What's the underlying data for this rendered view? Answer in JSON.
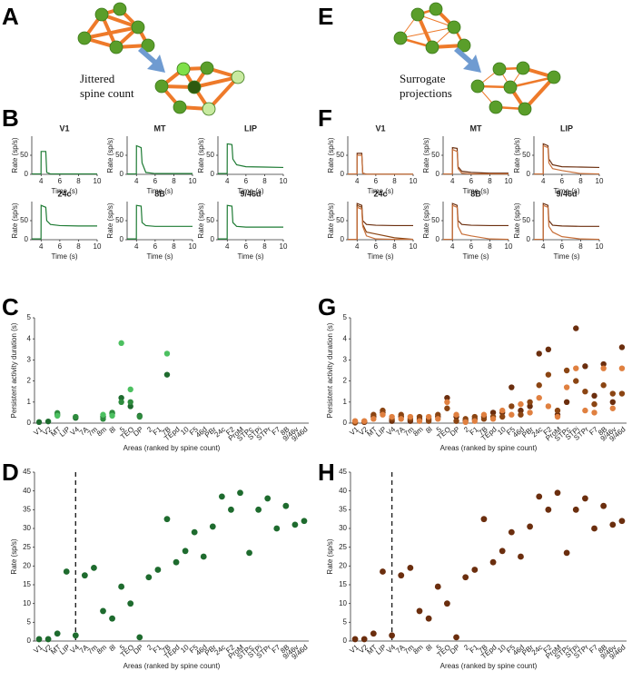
{
  "panel_labels": [
    "A",
    "B",
    "C",
    "D",
    "E",
    "F",
    "G",
    "H"
  ],
  "diagram_captions": [
    [
      "Jittered",
      "spine count"
    ],
    [
      "Surrogate",
      "projections"
    ]
  ],
  "chart_data": [
    {
      "type": "line",
      "title": "V1",
      "xlabel": "Time (s)",
      "ylabel": "Rate (sp/s)",
      "x": [
        3,
        3.99,
        4,
        4.5,
        4.6,
        5,
        6,
        8,
        10
      ],
      "xlim": [
        3,
        10
      ],
      "xticks": [
        4,
        6,
        8,
        10
      ],
      "ylim": [
        0,
        100
      ],
      "yticks": [
        0,
        50
      ],
      "series": [
        {
          "color": "#1e7b34",
          "values": [
            1,
            1,
            60,
            60,
            5,
            1,
            1,
            1,
            1
          ]
        }
      ]
    },
    {
      "type": "line",
      "title": "MT",
      "xlabel": "Time (s)",
      "ylabel": "Rate (sp/s)",
      "x": [
        3,
        3.99,
        4,
        4.5,
        4.6,
        5,
        6,
        8,
        10
      ],
      "xlim": [
        3,
        10
      ],
      "xticks": [
        4,
        6,
        8,
        10
      ],
      "ylim": [
        0,
        100
      ],
      "yticks": [
        0,
        50
      ],
      "series": [
        {
          "color": "#1e7b34",
          "values": [
            1,
            1,
            75,
            70,
            30,
            5,
            2,
            2,
            2
          ]
        }
      ]
    },
    {
      "type": "line",
      "title": "LIP",
      "xlabel": "Time (s)",
      "ylabel": "Rate (sp/s)",
      "x": [
        3,
        3.99,
        4,
        4.5,
        4.6,
        5,
        6,
        8,
        10
      ],
      "xlim": [
        3,
        10
      ],
      "xticks": [
        4,
        6,
        8,
        10
      ],
      "ylim": [
        0,
        100
      ],
      "yticks": [
        0,
        50
      ],
      "series": [
        {
          "color": "#1e7b34",
          "values": [
            2,
            2,
            80,
            78,
            40,
            25,
            20,
            19,
            18
          ]
        }
      ]
    },
    {
      "type": "line",
      "title": "24c",
      "xlabel": "Time (s)",
      "ylabel": "Rate (sp/s)",
      "x": [
        3,
        3.99,
        4,
        4.5,
        4.6,
        5,
        6,
        8,
        10
      ],
      "xlim": [
        3,
        10
      ],
      "xticks": [
        4,
        6,
        8,
        10
      ],
      "ylim": [
        0,
        100
      ],
      "yticks": [
        0,
        50
      ],
      "series": [
        {
          "color": "#1e7b34",
          "values": [
            2,
            2,
            90,
            85,
            50,
            40,
            37,
            36,
            36
          ]
        }
      ]
    },
    {
      "type": "line",
      "title": "8B",
      "xlabel": "Time (s)",
      "ylabel": "Rate (sp/s)",
      "x": [
        3,
        3.99,
        4,
        4.5,
        4.6,
        5,
        6,
        8,
        10
      ],
      "xlim": [
        3,
        10
      ],
      "xticks": [
        4,
        6,
        8,
        10
      ],
      "ylim": [
        0,
        100
      ],
      "yticks": [
        0,
        50
      ],
      "series": [
        {
          "color": "#1e7b34",
          "values": [
            2,
            2,
            90,
            88,
            45,
            37,
            35,
            35,
            35
          ]
        }
      ]
    },
    {
      "type": "line",
      "title": "9/46d",
      "xlabel": "Time (s)",
      "ylabel": "Rate (sp/s)",
      "x": [
        3,
        3.99,
        4,
        4.5,
        4.6,
        5,
        6,
        8,
        10
      ],
      "xlim": [
        3,
        10
      ],
      "xticks": [
        4,
        6,
        8,
        10
      ],
      "ylim": [
        0,
        100
      ],
      "yticks": [
        0,
        50
      ],
      "series": [
        {
          "color": "#1e7b34",
          "values": [
            2,
            2,
            90,
            88,
            45,
            35,
            33,
            33,
            33
          ]
        }
      ]
    },
    {
      "type": "line",
      "title": "V1",
      "xlabel": "Time (s)",
      "ylabel": "Rate (sp/s)",
      "x": [
        3,
        3.99,
        4,
        4.5,
        4.6,
        5,
        6,
        8,
        10
      ],
      "xlim": [
        3,
        10
      ],
      "xticks": [
        4,
        6,
        8,
        10
      ],
      "ylim": [
        0,
        100
      ],
      "yticks": [
        0,
        50
      ],
      "series": [
        {
          "color": "#6b2e0e",
          "values": [
            1,
            1,
            55,
            55,
            3,
            0.5,
            0.5,
            0.5,
            0.5
          ]
        },
        {
          "color": "#c8703a",
          "values": [
            1,
            1,
            50,
            50,
            2,
            0.5,
            0.5,
            0.5,
            0.5
          ]
        }
      ]
    },
    {
      "type": "line",
      "title": "MT",
      "xlabel": "Time (s)",
      "ylabel": "Rate (sp/s)",
      "x": [
        3,
        3.99,
        4,
        4.5,
        4.6,
        5,
        6,
        8,
        10
      ],
      "xlim": [
        3,
        10
      ],
      "xticks": [
        4,
        6,
        8,
        10
      ],
      "ylim": [
        0,
        100
      ],
      "yticks": [
        0,
        50
      ],
      "series": [
        {
          "color": "#6b2e0e",
          "values": [
            1,
            1,
            70,
            68,
            20,
            8,
            5,
            3,
            3
          ]
        },
        {
          "color": "#c8703a",
          "values": [
            1,
            1,
            65,
            60,
            15,
            3,
            1,
            1,
            1
          ]
        }
      ]
    },
    {
      "type": "line",
      "title": "LIP",
      "xlabel": "Time (s)",
      "ylabel": "Rate (sp/s)",
      "x": [
        3,
        3.99,
        4,
        4.5,
        4.6,
        5,
        6,
        8,
        10
      ],
      "xlim": [
        3,
        10
      ],
      "xticks": [
        4,
        6,
        8,
        10
      ],
      "ylim": [
        0,
        100
      ],
      "yticks": [
        0,
        50
      ],
      "series": [
        {
          "color": "#6b2e0e",
          "values": [
            1,
            1,
            80,
            75,
            40,
            25,
            20,
            19,
            18
          ]
        },
        {
          "color": "#c8703a",
          "values": [
            1,
            1,
            75,
            70,
            30,
            15,
            10,
            2,
            1
          ]
        }
      ]
    },
    {
      "type": "line",
      "title": "24c",
      "xlabel": "Time (s)",
      "ylabel": "Rate (sp/s)",
      "x": [
        3,
        3.99,
        4,
        4.5,
        4.6,
        5,
        6,
        8,
        10
      ],
      "xlim": [
        3,
        10
      ],
      "xticks": [
        4,
        6,
        8,
        10
      ],
      "ylim": [
        0,
        100
      ],
      "yticks": [
        0,
        50
      ],
      "series": [
        {
          "color": "#6b2e0e",
          "values": [
            1,
            1,
            95,
            90,
            50,
            40,
            38,
            37,
            37
          ]
        },
        {
          "color": "#8b4513",
          "values": [
            1,
            1,
            90,
            85,
            40,
            20,
            15,
            5,
            1
          ]
        },
        {
          "color": "#c8703a",
          "values": [
            1,
            1,
            85,
            80,
            35,
            10,
            2,
            1,
            1
          ]
        }
      ]
    },
    {
      "type": "line",
      "title": "8B",
      "xlabel": "Time (s)",
      "ylabel": "Rate (sp/s)",
      "x": [
        3,
        3.99,
        4,
        4.5,
        4.6,
        5,
        6,
        8,
        10
      ],
      "xlim": [
        3,
        10
      ],
      "xticks": [
        4,
        6,
        8,
        10
      ],
      "ylim": [
        0,
        100
      ],
      "yticks": [
        0,
        50
      ],
      "series": [
        {
          "color": "#6b2e0e",
          "values": [
            1,
            1,
            95,
            90,
            50,
            40,
            38,
            37,
            37
          ]
        },
        {
          "color": "#c8703a",
          "values": [
            1,
            1,
            90,
            85,
            35,
            15,
            10,
            2,
            1
          ]
        }
      ]
    },
    {
      "type": "line",
      "title": "9/46d",
      "xlabel": "Time (s)",
      "ylabel": "Rate (sp/s)",
      "x": [
        3,
        3.99,
        4,
        4.5,
        4.6,
        5,
        6,
        8,
        10
      ],
      "xlim": [
        3,
        10
      ],
      "xticks": [
        4,
        6,
        8,
        10
      ],
      "ylim": [
        0,
        100
      ],
      "yticks": [
        0,
        50
      ],
      "series": [
        {
          "color": "#6b2e0e",
          "values": [
            1,
            1,
            95,
            90,
            50,
            38,
            36,
            35,
            35
          ]
        },
        {
          "color": "#c8703a",
          "values": [
            1,
            1,
            90,
            85,
            35,
            20,
            8,
            2,
            1
          ]
        }
      ]
    },
    {
      "type": "scatter",
      "xlabel": "Areas (ranked by spine count)",
      "ylabel": "Persistent activity duration (s)",
      "categories": [
        "V1",
        "V2",
        "MT",
        "LIP",
        "V4",
        "7A",
        "7m",
        "8m",
        "8l",
        "5",
        "TEO",
        "DP",
        "2",
        "F1",
        "7B",
        "TEpd",
        "10",
        "F5",
        "46d",
        "PBr",
        "24c",
        "F2",
        "ProM",
        "STPc",
        "STPi",
        "STPr",
        "F7",
        "8B",
        "9/46v",
        "9/46d"
      ],
      "ylim": [
        0,
        5
      ],
      "yticks": [
        0,
        1,
        2,
        3,
        4,
        5
      ],
      "series": [
        {
          "color": "#1e6b2e",
          "values": [
            0.05,
            0.08,
            0.4,
            null,
            0.25,
            null,
            null,
            0.3,
            0.45,
            1.2,
            0.8,
            0.35,
            null,
            null,
            2.3,
            null,
            null,
            null,
            null,
            null,
            null,
            null,
            null,
            null,
            null,
            null,
            null,
            null,
            null,
            null
          ]
        },
        {
          "color": "#2e8b3e",
          "values": [
            null,
            null,
            0.48,
            null,
            0.3,
            null,
            null,
            0.2,
            0.5,
            1.0,
            1.0,
            0.3,
            null,
            null,
            null,
            null,
            null,
            null,
            null,
            null,
            null,
            null,
            null,
            null,
            null,
            null,
            null,
            null,
            null,
            null
          ]
        },
        {
          "color": "#4cc060",
          "values": [
            null,
            null,
            0.35,
            null,
            null,
            null,
            null,
            0.4,
            0.35,
            3.8,
            1.6,
            null,
            null,
            null,
            3.3,
            null,
            null,
            null,
            null,
            null,
            null,
            null,
            null,
            null,
            null,
            null,
            null,
            null,
            null,
            null
          ]
        }
      ]
    },
    {
      "type": "scatter",
      "xlabel": "Areas (ranked by spine count)",
      "ylabel": "Rate (sp/s)",
      "categories": [
        "V1",
        "V2",
        "MT",
        "LIP",
        "V4",
        "7A",
        "7m",
        "8m",
        "8l",
        "5",
        "TEO",
        "DP",
        "2",
        "F1",
        "7B",
        "TEpd",
        "10",
        "F5",
        "46d",
        "PBr",
        "24c",
        "F2",
        "ProM",
        "STPc",
        "STPi",
        "STPr",
        "F7",
        "8B",
        "9/46v",
        "9/46d"
      ],
      "ylim": [
        0,
        45
      ],
      "yticks": [
        0,
        5,
        10,
        15,
        20,
        25,
        30,
        35,
        40,
        45
      ],
      "color": "#1e6b2e",
      "values": [
        0.5,
        0.5,
        2,
        18.5,
        1.5,
        17.5,
        19.5,
        8,
        6,
        14.5,
        10,
        1,
        17,
        19,
        32.5,
        21,
        24,
        29,
        22.5,
        30.5,
        38.5,
        35,
        39.5,
        23.5,
        35,
        38,
        30,
        36,
        31,
        32
      ]
    },
    {
      "type": "scatter",
      "xlabel": "Areas (ranked by spine count)",
      "ylabel": "Persistent activity duration (s)",
      "categories": [
        "V1",
        "V2",
        "MT",
        "LIP",
        "V4",
        "7A",
        "7m",
        "8m",
        "8l",
        "5",
        "TEO",
        "DP",
        "2",
        "F1",
        "7B",
        "TEpd",
        "10",
        "F5",
        "46d",
        "PBr",
        "24c",
        "F2",
        "ProM",
        "STPc",
        "STPi",
        "STPr",
        "F7",
        "8B",
        "9/46v",
        "9/46d"
      ],
      "ylim": [
        0,
        5
      ],
      "yticks": [
        0,
        1,
        2,
        3,
        4,
        5
      ],
      "series": [
        {
          "color": "#6b2e0e",
          "values": [
            0.05,
            0.05,
            0.3,
            0.5,
            0.1,
            0.3,
            0.1,
            0.2,
            0.2,
            0.3,
            1.2,
            0.3,
            0.1,
            0.2,
            0.3,
            0.5,
            0.5,
            1.7,
            0.6,
            0.8,
            3.3,
            3.5,
            0.4,
            1.0,
            4.5,
            2.7,
            1.3,
            2.8,
            1.0,
            3.6
          ]
        },
        {
          "color": "#8b4513",
          "values": [
            0.02,
            0.08,
            0.4,
            0.6,
            0.2,
            0.4,
            0.2,
            0.3,
            0.1,
            0.4,
            0.7,
            0.1,
            0.2,
            0.3,
            0.2,
            0.3,
            0.3,
            0.8,
            0.4,
            1.0,
            1.8,
            2.3,
            0.6,
            2.5,
            2.0,
            1.5,
            0.9,
            1.8,
            1.4,
            1.4
          ]
        },
        {
          "color": "#e08040",
          "values": [
            0.1,
            0.1,
            0.2,
            0.4,
            0.3,
            0.2,
            0.3,
            0.1,
            0.3,
            0.2,
            1.0,
            0.4,
            0.05,
            0.1,
            0.4,
            0.2,
            0.6,
            0.4,
            0.9,
            0.5,
            1.2,
            0.8,
            0.3,
            1.7,
            2.6,
            0.6,
            0.5,
            2.6,
            0.7,
            2.6
          ]
        }
      ]
    },
    {
      "type": "scatter",
      "xlabel": "Areas (ranked by spine count)",
      "ylabel": "Rate (sp/s)",
      "categories": [
        "V1",
        "V2",
        "MT",
        "LIP",
        "V4",
        "7A",
        "7m",
        "8m",
        "8l",
        "5",
        "TEO",
        "DP",
        "2",
        "F1",
        "7B",
        "TEpd",
        "10",
        "F5",
        "46d",
        "PBr",
        "24c",
        "F2",
        "ProM",
        "STPc",
        "STPi",
        "STPr",
        "F7",
        "8B",
        "9/46v",
        "9/46d"
      ],
      "ylim": [
        0,
        45
      ],
      "yticks": [
        0,
        5,
        10,
        15,
        20,
        25,
        30,
        35,
        40,
        45
      ],
      "color": "#6b2e0e",
      "values": [
        0.5,
        0.5,
        2,
        18.5,
        1.5,
        17.5,
        19.5,
        8,
        6,
        14.5,
        10,
        1,
        17,
        19,
        32.5,
        21,
        24,
        29,
        22.5,
        30.5,
        38.5,
        35,
        39.5,
        23.5,
        35,
        38,
        30,
        36,
        31,
        32
      ]
    }
  ]
}
